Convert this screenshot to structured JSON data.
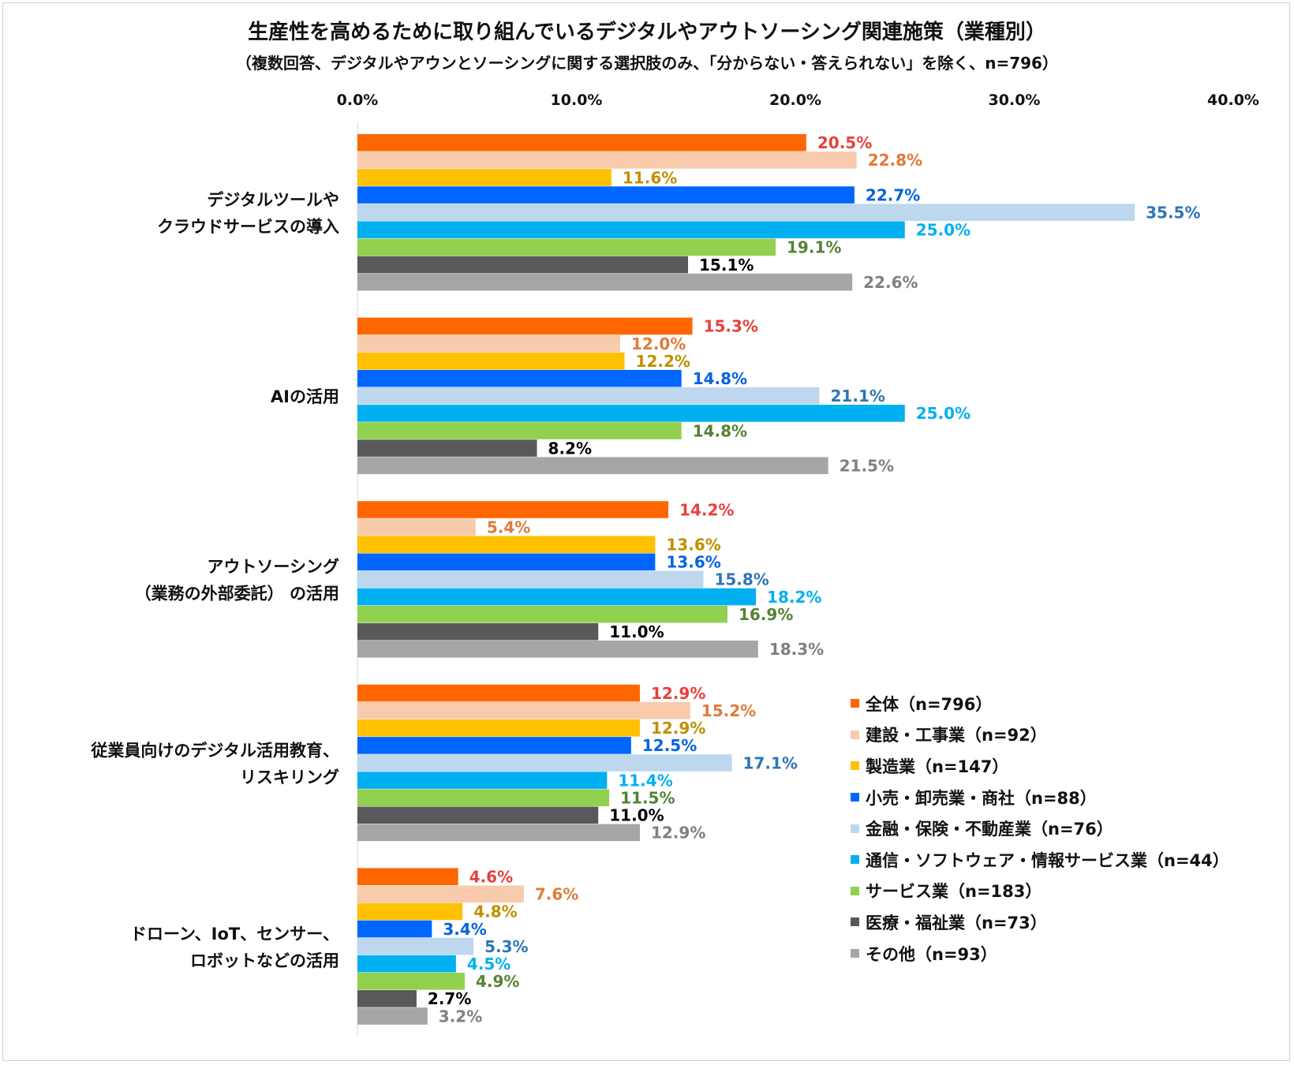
{
  "chart_data": {
    "type": "bar",
    "orientation": "horizontal",
    "title": "生産性を高めるために取り組んでいるデジタルやアウトソーシング関連施策（業種別）",
    "subtitle": "（複数回答、デジタルやアウンとソーシングに関する選択肢のみ、「分からない・答えられない」を除く、n=796）",
    "xlim": [
      0,
      40
    ],
    "x_ticks": [
      "0.0%",
      "10.0%",
      "20.0%",
      "30.0%",
      "40.0%"
    ],
    "x_axis_position": "top",
    "grid": false,
    "legend_position": "bottom-right",
    "categories": [
      [
        "デジタルツールや",
        "クラウドサービスの導入"
      ],
      [
        "AIの活用"
      ],
      [
        "アウトソーシング",
        "（業務の外部委託） の活用"
      ],
      [
        "従業員向けのデジタル活用教育、",
        "リスキリング"
      ],
      [
        "ドローン、IoT、センサー、",
        "ロボットなどの活用"
      ]
    ],
    "series": [
      {
        "name": "全体（n=796）",
        "color": "#ff6600",
        "label_color": "#e8413c",
        "values": [
          20.5,
          15.3,
          14.2,
          12.9,
          4.6
        ]
      },
      {
        "name": "建設・工事業（n=92）",
        "color": "#f8cbad",
        "label_color": "#e07b39",
        "values": [
          22.8,
          12.0,
          5.4,
          15.2,
          7.6
        ]
      },
      {
        "name": "製造業（n=147）",
        "color": "#ffc000",
        "label_color": "#bf9000",
        "values": [
          11.6,
          12.2,
          13.6,
          12.9,
          4.8
        ]
      },
      {
        "name": "小売・卸売業・商社（n=88）",
        "color": "#0066ff",
        "label_color": "#0563e1",
        "values": [
          22.7,
          14.8,
          13.6,
          12.5,
          3.4
        ]
      },
      {
        "name": "金融・保険・不動産業（n=76）",
        "color": "#bdd7ee",
        "label_color": "#2e75b6",
        "values": [
          35.5,
          21.1,
          15.8,
          17.1,
          5.3
        ]
      },
      {
        "name": "通信・ソフトウェア・情報サービス業（n=44）",
        "color": "#00b0f0",
        "label_color": "#00b0f0",
        "values": [
          25.0,
          25.0,
          18.2,
          11.4,
          4.5
        ]
      },
      {
        "name": "サービス業（n=183）",
        "color": "#92d050",
        "label_color": "#548235",
        "values": [
          19.1,
          14.8,
          16.9,
          11.5,
          4.9
        ]
      },
      {
        "name": "医療・福祉業（n=73）",
        "color": "#595959",
        "label_color": "#000000",
        "values": [
          15.1,
          8.2,
          11.0,
          11.0,
          2.7
        ]
      },
      {
        "name": "その他（n=93）",
        "color": "#a6a6a6",
        "label_color": "#808080",
        "values": [
          22.6,
          21.5,
          18.3,
          12.9,
          3.2
        ]
      }
    ]
  }
}
